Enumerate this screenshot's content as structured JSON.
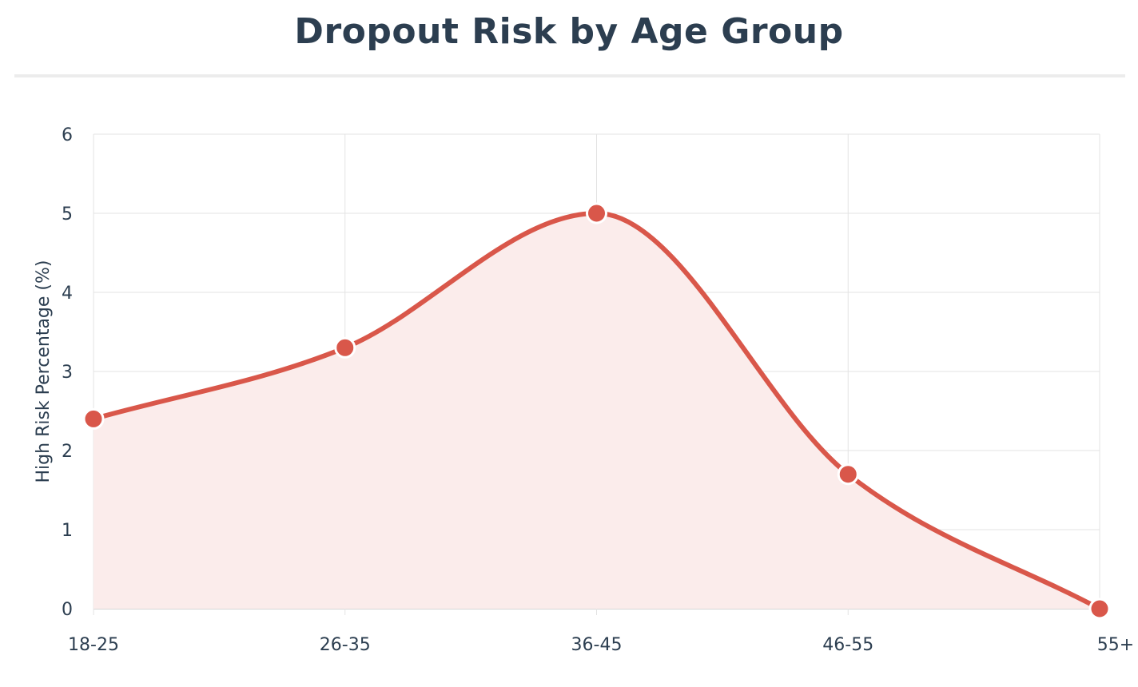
{
  "chart_data": {
    "type": "area",
    "title": "Dropout Risk by Age Group",
    "xlabel": "",
    "ylabel": "High Risk Percentage (%)",
    "categories": [
      "18-25",
      "26-35",
      "36-45",
      "46-55",
      "55+"
    ],
    "series": [
      {
        "values": [
          2.4,
          3.3,
          5.0,
          1.7,
          0.0
        ]
      }
    ],
    "ylim": [
      0,
      6
    ],
    "yticks": [
      0,
      1,
      2,
      3,
      4,
      5,
      6
    ],
    "grid": true,
    "legend": "none",
    "line_shape": "spline",
    "colors": {
      "line": "#d9574a",
      "fill": "#fbeceb",
      "marker": "#d9574a",
      "marker_outline": "#ffffff",
      "grid": "#e3e3e3",
      "text": "#2c3e50"
    }
  }
}
